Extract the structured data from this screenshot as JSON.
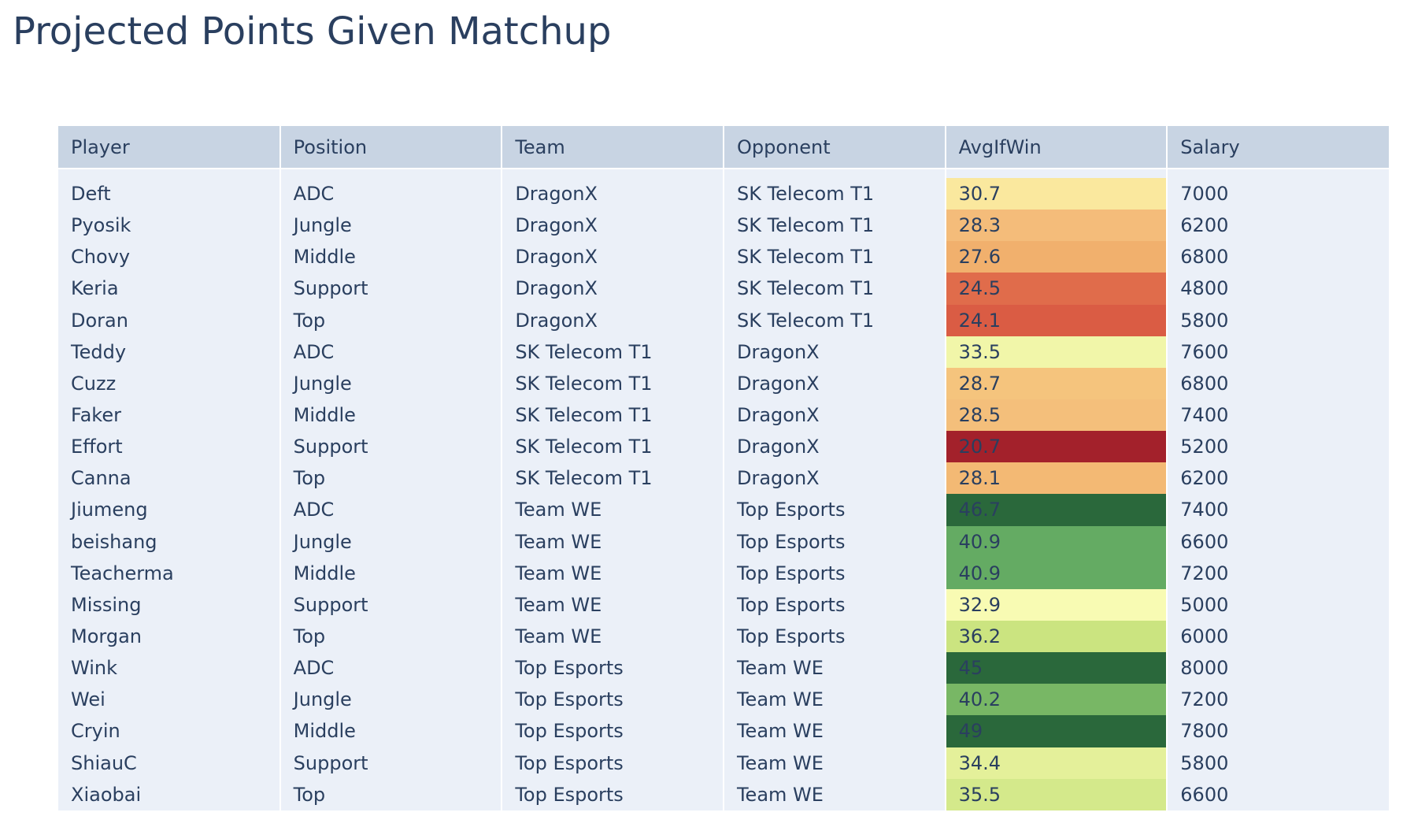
{
  "title": "Projected Points Given Matchup",
  "chart_data": {
    "type": "table",
    "title": "Projected Points Given Matchup",
    "columns": [
      "Player",
      "Position",
      "Team",
      "Opponent",
      "AvgIfWin",
      "Salary"
    ],
    "rows": [
      {
        "player": "Deft",
        "position": "ADC",
        "team": "DragonX",
        "opponent": "SK Telecom T1",
        "avg": "30.7",
        "salary": "7000"
      },
      {
        "player": "Pyosik",
        "position": "Jungle",
        "team": "DragonX",
        "opponent": "SK Telecom T1",
        "avg": "28.3",
        "salary": "6200"
      },
      {
        "player": "Chovy",
        "position": "Middle",
        "team": "DragonX",
        "opponent": "SK Telecom T1",
        "avg": "27.6",
        "salary": "6800"
      },
      {
        "player": "Keria",
        "position": "Support",
        "team": "DragonX",
        "opponent": "SK Telecom T1",
        "avg": "24.5",
        "salary": "4800"
      },
      {
        "player": "Doran",
        "position": "Top",
        "team": "DragonX",
        "opponent": "SK Telecom T1",
        "avg": "24.1",
        "salary": "5800"
      },
      {
        "player": "Teddy",
        "position": "ADC",
        "team": "SK Telecom T1",
        "opponent": "DragonX",
        "avg": "33.5",
        "salary": "7600"
      },
      {
        "player": "Cuzz",
        "position": "Jungle",
        "team": "SK Telecom T1",
        "opponent": "DragonX",
        "avg": "28.7",
        "salary": "6800"
      },
      {
        "player": "Faker",
        "position": "Middle",
        "team": "SK Telecom T1",
        "opponent": "DragonX",
        "avg": "28.5",
        "salary": "7400"
      },
      {
        "player": "Effort",
        "position": "Support",
        "team": "SK Telecom T1",
        "opponent": "DragonX",
        "avg": "20.7",
        "salary": "5200"
      },
      {
        "player": "Canna",
        "position": "Top",
        "team": "SK Telecom T1",
        "opponent": "DragonX",
        "avg": "28.1",
        "salary": "6200"
      },
      {
        "player": "Jiumeng",
        "position": "ADC",
        "team": "Team WE",
        "opponent": "Top Esports",
        "avg": "46.7",
        "salary": "7400"
      },
      {
        "player": "beishang",
        "position": "Jungle",
        "team": "Team WE",
        "opponent": "Top Esports",
        "avg": "40.9",
        "salary": "6600"
      },
      {
        "player": "Teacherma",
        "position": "Middle",
        "team": "Team WE",
        "opponent": "Top Esports",
        "avg": "40.9",
        "salary": "7200"
      },
      {
        "player": "Missing",
        "position": "Support",
        "team": "Team WE",
        "opponent": "Top Esports",
        "avg": "32.9",
        "salary": "5000"
      },
      {
        "player": "Morgan",
        "position": "Top",
        "team": "Team WE",
        "opponent": "Top Esports",
        "avg": "36.2",
        "salary": "6000"
      },
      {
        "player": "Wink",
        "position": "ADC",
        "team": "Top Esports",
        "opponent": "Team WE",
        "avg": "45",
        "salary": "8000"
      },
      {
        "player": "Wei",
        "position": "Jungle",
        "team": "Top Esports",
        "opponent": "Team WE",
        "avg": "40.2",
        "salary": "7200"
      },
      {
        "player": "Cryin",
        "position": "Middle",
        "team": "Top Esports",
        "opponent": "Team WE",
        "avg": "49",
        "salary": "7800"
      },
      {
        "player": "ShiauC",
        "position": "Support",
        "team": "Top Esports",
        "opponent": "Team WE",
        "avg": "34.4",
        "salary": "5800"
      },
      {
        "player": "Xiaobai",
        "position": "Top",
        "team": "Top Esports",
        "opponent": "Team WE",
        "avg": "35.5",
        "salary": "6600"
      }
    ],
    "avg_cell_colors": [
      "#fae89e",
      "#f4bc7a",
      "#f1b06d",
      "#e06c4b",
      "#da5c44",
      "#f1f6a9",
      "#f5c47d",
      "#f4bf7b",
      "#a3212b",
      "#f3b974",
      "#2a683b",
      "#64ab63",
      "#64ab63",
      "#f8fbb3",
      "#cbe480",
      "#2a683b",
      "#78b765",
      "#2a683b",
      "#e4f09a",
      "#d4e98b"
    ],
    "colors": {
      "header_bg": "#c8d4e3",
      "cell_bg": "#ebf0f8",
      "text": "#2a3f5f"
    },
    "colorscale": "RdYlGn"
  }
}
